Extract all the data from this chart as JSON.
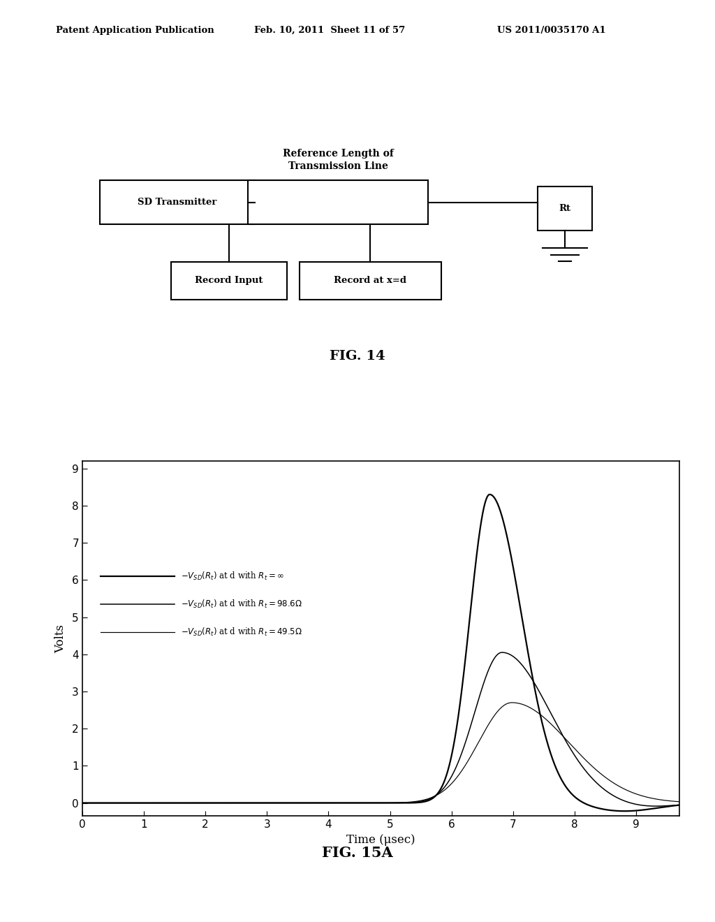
{
  "header_left": "Patent Application Publication",
  "header_mid": "Feb. 10, 2011  Sheet 11 of 57",
  "header_right": "US 2011/0035170 A1",
  "fig14_title": "FIG. 14",
  "fig15a_title": "FIG. 15A",
  "fig14_label_top": "Reference Length of\nTransmission Line",
  "fig14_box1": "SD Transmitter",
  "fig14_box2": "Record Input",
  "fig14_box3": "Record at x=d",
  "fig14_box4": "Rt",
  "plot_xlabel": "Time (μsec)",
  "plot_ylabel": "Volts",
  "plot_xlim": [
    0,
    9.7
  ],
  "plot_ylim": [
    -0.35,
    9.2
  ],
  "plot_xticks": [
    0,
    1,
    2,
    3,
    4,
    5,
    6,
    7,
    8,
    9
  ],
  "plot_yticks": [
    0,
    1,
    2,
    3,
    4,
    5,
    6,
    7,
    8,
    9
  ],
  "background_color": "#ffffff",
  "line_color": "#000000",
  "curve1_peak": 8.3,
  "curve1_tpeak": 6.62,
  "curve1_rise": 0.32,
  "curve1_fall": 0.52,
  "curve2_peak": 4.05,
  "curve2_tpeak": 6.82,
  "curve2_rise": 0.44,
  "curve2_fall": 0.78,
  "curve3_peak": 2.7,
  "curve3_tpeak": 6.98,
  "curve3_rise": 0.54,
  "curve3_fall": 0.92
}
